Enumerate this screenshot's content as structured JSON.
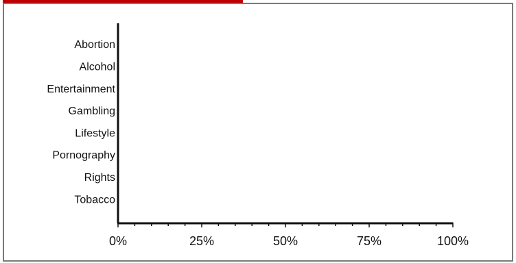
{
  "chart_data": {
    "type": "bar",
    "orientation": "horizontal",
    "categories": [
      "Abortion",
      "Alcohol",
      "Entertainment",
      "Gambling",
      "Lifestyle",
      "Pornography",
      "Rights",
      "Tobacco"
    ],
    "values": [
      0,
      0,
      0,
      0,
      0,
      0,
      0,
      0
    ],
    "x_ticks": [
      "0%",
      "25%",
      "50%",
      "75%",
      "100%"
    ],
    "xlim": [
      0,
      100
    ],
    "grid": false,
    "title": "",
    "xlabel": "",
    "ylabel": ""
  },
  "colors": {
    "accent": "#c00000",
    "frame": "#7a7a7a",
    "axis": "#111111"
  }
}
